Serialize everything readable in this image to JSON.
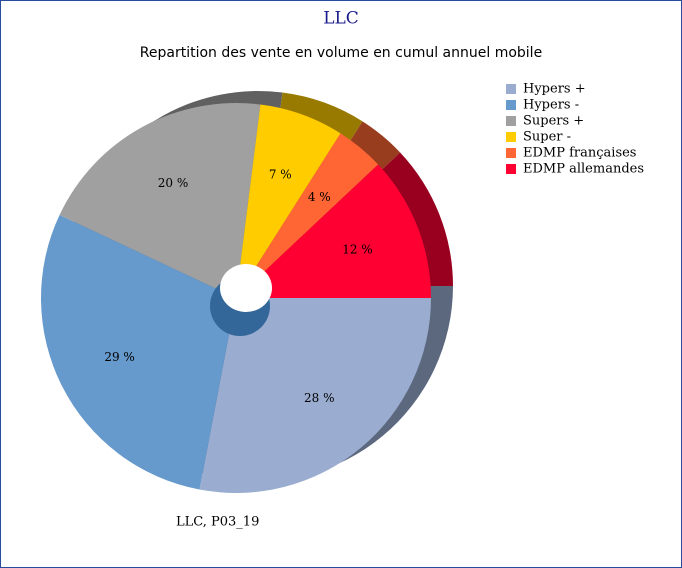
{
  "chart_data": {
    "type": "pie",
    "title": "LLC",
    "subtitle": "Repartition des vente en volume en cumul annuel mobile",
    "footnote": "LLC, P03_19",
    "categories": [
      "Hypers +",
      "Hypers -",
      "Supers +",
      "Super -",
      "EDMP françaises",
      "EDMP allemandes"
    ],
    "values": [
      28,
      29,
      20,
      7,
      4,
      12
    ],
    "value_labels": [
      "28 %",
      "29 %",
      "20 %",
      "7 %",
      "4 %",
      "12 %"
    ],
    "colors": [
      "#9aadd1",
      "#6699cc",
      "#a0a0a0",
      "#ffcc00",
      "#ff6633",
      "#ff0033"
    ],
    "legend": "right"
  }
}
